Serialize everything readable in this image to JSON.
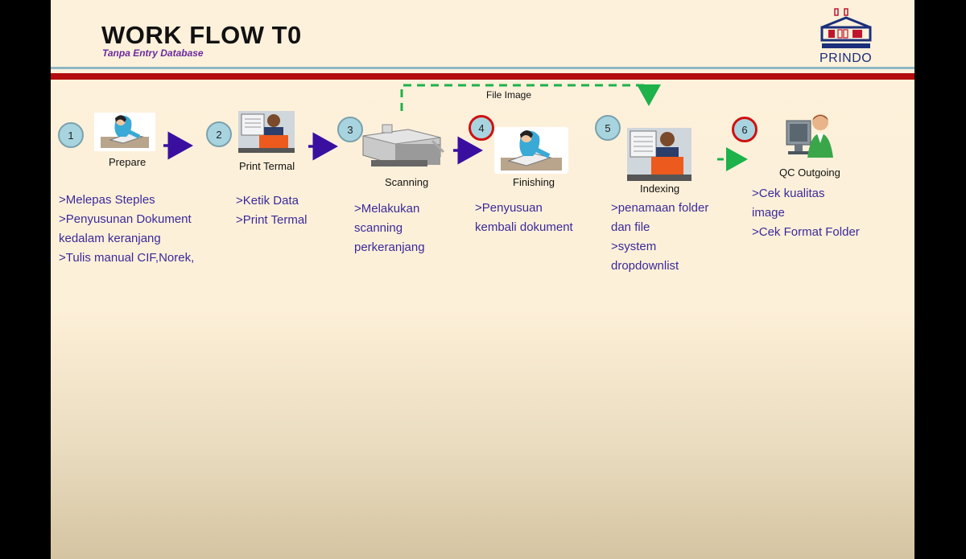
{
  "header": {
    "title": "WORK FLOW T0",
    "subtitle": "Tanpa Entry Database",
    "logo_text": "PRINDO"
  },
  "flow_label": "File Image",
  "steps": [
    {
      "number": "1",
      "label": "Prepare",
      "lines": [
        ">Melepas Steples",
        ">Penyusunan Dokument",
        "kedalam keranjang",
        ">Tulis manual CIF,Norek,"
      ]
    },
    {
      "number": "2",
      "label": "Print Termal",
      "lines": [
        ">Ketik Data",
        ">Print Termal"
      ]
    },
    {
      "number": "3",
      "label": "Scanning",
      "lines": [
        ">Melakukan",
        "scanning",
        "perkeranjang"
      ]
    },
    {
      "number": "4",
      "label": "Finishing",
      "lines": [
        ">Penyusuan",
        "kembali dokument"
      ]
    },
    {
      "number": "5",
      "label": "Indexing",
      "lines": [
        ">penamaan folder",
        "dan file",
        ">system",
        "dropdownlist"
      ]
    },
    {
      "number": "6",
      "label": "QC Outgoing",
      "lines": [
        ">Cek kualitas",
        "image",
        ">Cek Format Folder"
      ]
    }
  ],
  "colors": {
    "arrow": "#3a0fa0",
    "dashed": "#1db24a",
    "badge_red": "#d01010",
    "title_bar": "#b30d0d"
  }
}
